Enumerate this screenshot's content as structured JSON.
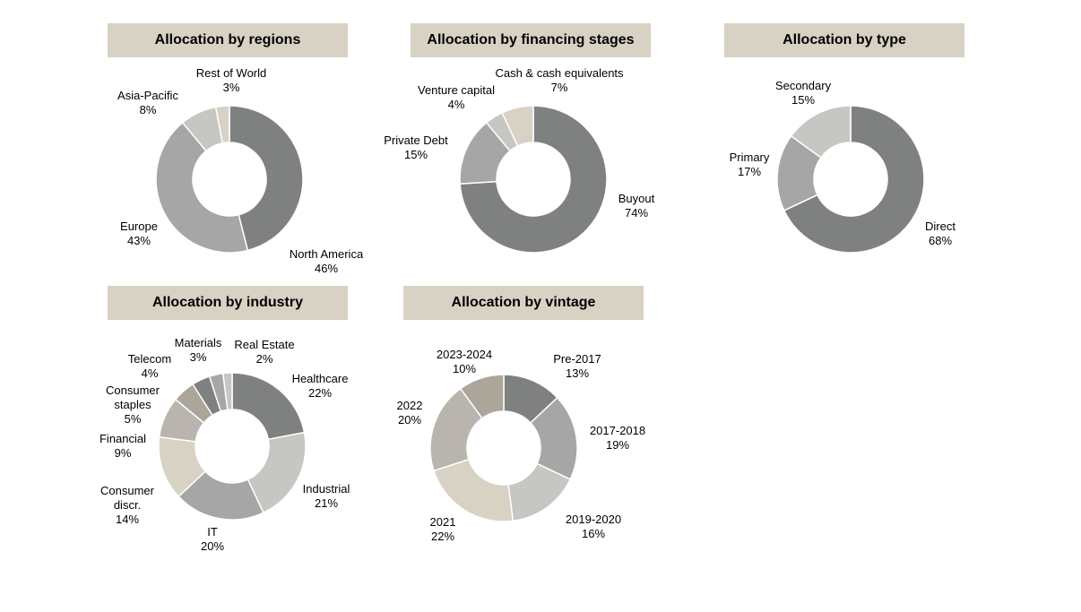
{
  "chart_data": [
    {
      "type": "pie",
      "donut": true,
      "title": "Allocation by regions",
      "slices": [
        {
          "label": "North America",
          "value": 46,
          "display": "46%",
          "color": "#7f8180"
        },
        {
          "label": "Europe",
          "value": 43,
          "display": "43%",
          "color": "#a6a6a6"
        },
        {
          "label": "Asia-Pacific",
          "value": 8,
          "display": "8%",
          "color": "#c6c6c2"
        },
        {
          "label": "Rest of World",
          "value": 3,
          "display": "3%",
          "color": "#d8d2c4"
        }
      ]
    },
    {
      "type": "pie",
      "donut": true,
      "title": "Allocation by financing stages",
      "slices": [
        {
          "label": "Buyout",
          "value": 74,
          "display": "74%",
          "color": "#7f8180"
        },
        {
          "label": "Private Debt",
          "value": 15,
          "display": "15%",
          "color": "#a6a6a6"
        },
        {
          "label": "Venture capital",
          "value": 4,
          "display": "4%",
          "color": "#c6c6c2"
        },
        {
          "label": "Cash & cash equivalents",
          "value": 7,
          "display": "7%",
          "color": "#d8d2c4"
        }
      ]
    },
    {
      "type": "pie",
      "donut": true,
      "title": "Allocation by type",
      "slices": [
        {
          "label": "Direct",
          "value": 68,
          "display": "68%",
          "color": "#7f8180"
        },
        {
          "label": "Primary",
          "value": 17,
          "display": "17%",
          "color": "#a6a6a6"
        },
        {
          "label": "Secondary",
          "value": 15,
          "display": "15%",
          "color": "#c6c6c2"
        }
      ]
    },
    {
      "type": "pie",
      "donut": true,
      "title": "Allocation by industry",
      "slices": [
        {
          "label": "Healthcare",
          "value": 22,
          "display": "22%",
          "color": "#7f8180"
        },
        {
          "label": "Industrial",
          "value": 21,
          "display": "21%",
          "color": "#c6c6c2"
        },
        {
          "label": "IT",
          "value": 20,
          "display": "20%",
          "color": "#a6a6a6"
        },
        {
          "label": "Consumer discr.",
          "value": 14,
          "display": "14%",
          "color": "#d8d2c4"
        },
        {
          "label": "Financial",
          "value": 9,
          "display": "9%",
          "color": "#b9b5ae"
        },
        {
          "label": "Consumer staples",
          "value": 5,
          "display": "5%",
          "color": "#aca59a"
        },
        {
          "label": "Telecom",
          "value": 4,
          "display": "4%",
          "color": "#7f8180"
        },
        {
          "label": "Materials",
          "value": 3,
          "display": "3%",
          "color": "#a6a6a6"
        },
        {
          "label": "Real Estate",
          "value": 2,
          "display": "2%",
          "color": "#c6c6c2"
        }
      ]
    },
    {
      "type": "pie",
      "donut": true,
      "title": "Allocation by vintage",
      "slices": [
        {
          "label": "Pre-2017",
          "value": 13,
          "display": "13%",
          "color": "#7f8180"
        },
        {
          "label": "2017-2018",
          "value": 19,
          "display": "19%",
          "color": "#a6a6a6"
        },
        {
          "label": "2019-2020",
          "value": 16,
          "display": "16%",
          "color": "#c6c6c2"
        },
        {
          "label": "2021",
          "value": 22,
          "display": "22%",
          "color": "#d8d2c4"
        },
        {
          "label": "2022",
          "value": 20,
          "display": "20%",
          "color": "#b9b5ae"
        },
        {
          "label": "2023-2024",
          "value": 10,
          "display": "10%",
          "color": "#aca59a"
        }
      ]
    }
  ]
}
